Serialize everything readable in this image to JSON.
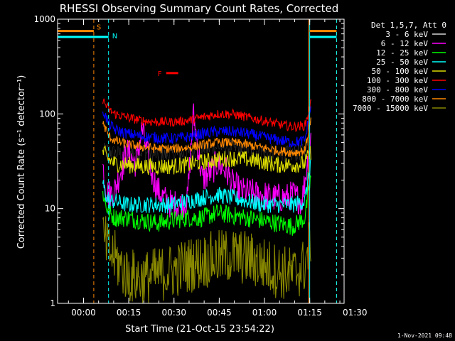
{
  "colors": {
    "background": "#000000",
    "axis": "#ffffff",
    "black": "#000000",
    "magenta": "#ff00ff",
    "green": "#00ff00",
    "cyan": "#00ffff",
    "yellow": "#dddd00",
    "red": "#ff0000",
    "blue": "#0000ff",
    "orange": "#ff8800",
    "olive": "#888800"
  },
  "chart_data": {
    "type": "line",
    "title": "RHESSI Observing Summary Count Rates, Corrected",
    "xlabel": "Start Time (21-Oct-15 23:54:22)",
    "ylabel": "Corrected Count Rate (s⁻¹ detector⁻¹)",
    "yscale": "log",
    "ylim": [
      1,
      1000
    ],
    "xlim_minutes": [
      -3,
      92
    ],
    "ytick_labels": [
      {
        "value": 1,
        "label": "1"
      },
      {
        "value": 10,
        "label": "10"
      },
      {
        "value": 100,
        "label": "100"
      },
      {
        "value": 1000,
        "label": "1000"
      }
    ],
    "xtick_labels": [
      {
        "value": 5.6,
        "label": "00:00"
      },
      {
        "value": 20.6,
        "label": "00:15"
      },
      {
        "value": 35.6,
        "label": "00:30"
      },
      {
        "value": 50.6,
        "label": "00:45"
      },
      {
        "value": 65.6,
        "label": "01:00"
      },
      {
        "value": 80.6,
        "label": "01:15"
      },
      {
        "value": 95.6,
        "label": "01:30"
      }
    ],
    "legend_header": "Det 1,5,7, Att 0",
    "series": [
      {
        "name": "3 - 6 keV",
        "color": "#000000",
        "x": [
          12,
          14,
          16,
          20,
          25,
          30,
          35,
          40,
          45,
          50,
          55,
          60,
          65,
          70,
          75,
          79,
          81
        ],
        "y": [
          40,
          41,
          38,
          39,
          40,
          37,
          37,
          38,
          42,
          45,
          45,
          42,
          40,
          38,
          38,
          40,
          62
        ]
      },
      {
        "name": "6 - 12 keV",
        "color": "#ff00ff",
        "x": [
          12,
          13,
          14,
          16,
          20,
          23,
          25,
          28,
          30,
          33,
          35,
          38,
          40,
          42,
          45,
          48,
          50,
          53,
          55,
          58,
          60,
          63,
          65,
          68,
          70,
          73,
          75,
          78,
          79,
          81
        ],
        "y": [
          28,
          17,
          14,
          16,
          40,
          30,
          70,
          25,
          16,
          12,
          11,
          11,
          12,
          100,
          20,
          25,
          30,
          25,
          18,
          15,
          15,
          14,
          14,
          13,
          13,
          13,
          14,
          12,
          20,
          55
        ]
      },
      {
        "name": "12 - 25 keV",
        "color": "#00ff00",
        "x": [
          12,
          13,
          14,
          16,
          20,
          25,
          30,
          35,
          40,
          45,
          50,
          55,
          60,
          65,
          70,
          75,
          79,
          81
        ],
        "y": [
          15,
          11,
          9,
          8,
          8,
          7.5,
          7,
          7.5,
          8,
          8,
          9,
          8.5,
          8,
          7.5,
          7,
          6.5,
          8,
          22
        ]
      },
      {
        "name": "25 - 50 keV",
        "color": "#00ffff",
        "x": [
          12,
          13,
          14,
          16,
          20,
          25,
          30,
          35,
          40,
          45,
          50,
          55,
          60,
          65,
          70,
          75,
          79,
          81
        ],
        "y": [
          18,
          14,
          12,
          12,
          11,
          11,
          11,
          11,
          12,
          13,
          14,
          13,
          12,
          11,
          11,
          11,
          12,
          32
        ]
      },
      {
        "name": "50 - 100 keV",
        "color": "#dddd00",
        "x": [
          12,
          14,
          16,
          20,
          25,
          30,
          35,
          40,
          45,
          50,
          55,
          60,
          65,
          70,
          75,
          79,
          81
        ],
        "y": [
          40,
          33,
          30,
          29,
          28,
          28,
          28,
          29,
          31,
          33,
          34,
          33,
          31,
          29,
          29,
          30,
          40
        ]
      },
      {
        "name": "100 - 300 keV",
        "color": "#ff0000",
        "x": [
          12,
          14,
          16,
          20,
          25,
          30,
          35,
          40,
          45,
          50,
          55,
          60,
          65,
          70,
          75,
          79,
          81
        ],
        "y": [
          140,
          110,
          100,
          92,
          85,
          82,
          82,
          85,
          92,
          100,
          100,
          92,
          85,
          78,
          73,
          75,
          130
        ]
      },
      {
        "name": "300 - 800 keV",
        "color": "#0000ff",
        "x": [
          12,
          14,
          16,
          20,
          25,
          30,
          35,
          40,
          45,
          50,
          55,
          60,
          65,
          70,
          75,
          79,
          81
        ],
        "y": [
          110,
          78,
          68,
          62,
          58,
          56,
          55,
          57,
          62,
          65,
          65,
          62,
          57,
          53,
          50,
          52,
          120
        ]
      },
      {
        "name": "800 - 7000 keV",
        "color": "#ff8800",
        "x": [
          12,
          14,
          16,
          20,
          25,
          30,
          35,
          40,
          45,
          50,
          55,
          60,
          65,
          70,
          75,
          79,
          81
        ],
        "y": [
          80,
          58,
          52,
          48,
          45,
          43,
          43,
          44,
          47,
          50,
          50,
          47,
          44,
          41,
          39,
          41,
          90
        ]
      },
      {
        "name": "7000 - 15000 keV",
        "color": "#888800",
        "x": [
          12,
          14,
          16,
          20,
          25,
          30,
          35,
          40,
          45,
          50,
          55,
          60,
          65,
          70,
          75,
          79,
          81
        ],
        "y": [
          5,
          3.5,
          3,
          2,
          1.8,
          2,
          2.2,
          2.5,
          2.8,
          3,
          3.2,
          3,
          2.6,
          2.2,
          2,
          2.5,
          5
        ]
      }
    ],
    "annotations": [
      {
        "label": "S",
        "color": "#ff8800",
        "x_start": -3,
        "x_end": 9,
        "y": 750,
        "x_after_start": 80.6,
        "x_after_end": 89.5
      },
      {
        "label": "N",
        "color": "#00ffff",
        "x_start": -3,
        "x_end": 13.9,
        "y": 650,
        "x_after_start": 80.6,
        "x_after_end": 89.5
      },
      {
        "label": "F",
        "color": "#ff0000",
        "x_start": 33,
        "x_end": 37,
        "y": 270
      }
    ],
    "vertical_markers": [
      {
        "x": 9,
        "color": "#ff8800",
        "style": "dashed"
      },
      {
        "x": 13.9,
        "color": "#00ffff",
        "style": "dashed"
      },
      {
        "x": 80.2,
        "color": "#ff8800",
        "style": "solid"
      },
      {
        "x": 80.6,
        "color": "#00ffff",
        "style": "solid"
      },
      {
        "x": 89.5,
        "color": "#ff8800",
        "style": "dashed"
      },
      {
        "x": 89.5,
        "color": "#00ffff",
        "style": "dashed"
      },
      {
        "x": -3,
        "color": "#00ffff",
        "style": "solid"
      }
    ],
    "footer_date": "1-Nov-2021 09:48"
  }
}
